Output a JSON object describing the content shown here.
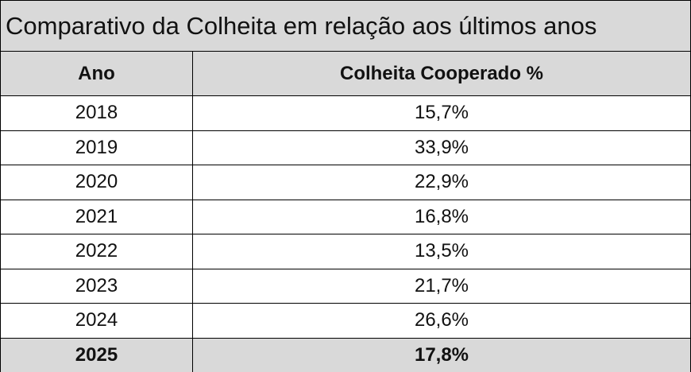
{
  "title": "Comparativo da Colheita em relação aos últimos anos",
  "table": {
    "headers": [
      "Ano",
      "Colheita Cooperado %"
    ],
    "rows": [
      [
        "2018",
        "15,7%"
      ],
      [
        "2019",
        "33,9%"
      ],
      [
        "2020",
        "22,9%"
      ],
      [
        "2021",
        "16,8%"
      ],
      [
        "2022",
        "13,5%"
      ],
      [
        "2023",
        "21,7%"
      ],
      [
        "2024",
        "26,6%"
      ],
      [
        "2025",
        "17,8%"
      ]
    ]
  }
}
